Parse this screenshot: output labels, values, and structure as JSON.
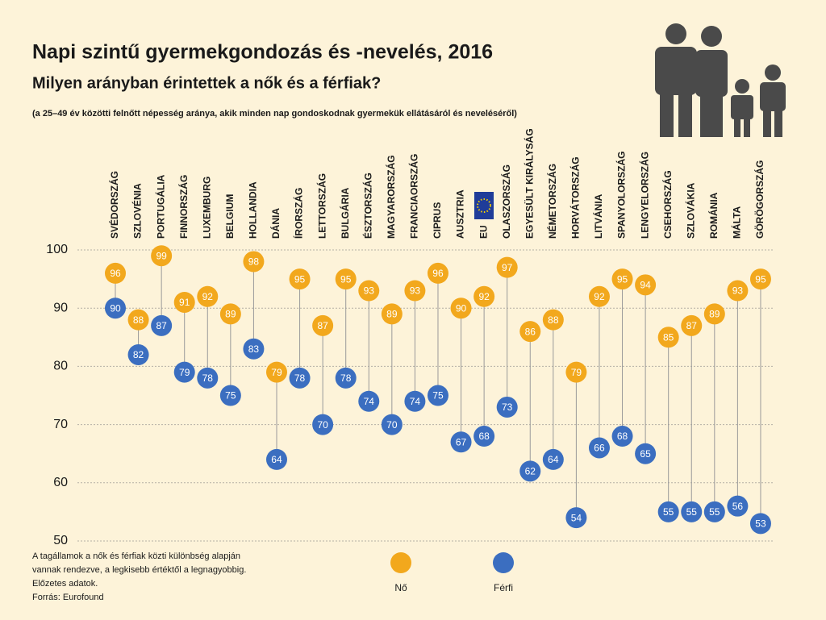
{
  "chart_data": {
    "type": "dumbbell",
    "title": "Napi szintű gyermekgondozás és -nevelés, 2016",
    "subtitle": "Milyen arányban érintettek a nők és a férfiak?",
    "description": "(a 25–49 év közötti felnőtt népesség aránya, akik minden nap gondoskodnak gyermekük ellátásáról és neveléséről)",
    "categories": [
      "SVÉDORSZÁG",
      "SZLOVÉNIA",
      "PORTUGÁLIA",
      "FINNORSZÁG",
      "LUXEMBURG",
      "BELGIUM",
      "HOLLANDIA",
      "DÁNIA",
      "ÍRORSZÁG",
      "LETTORSZÁG",
      "BULGÁRIA",
      "ÉSZTORSZÁG",
      "MAGYARORSZÁG",
      "FRANCIAORSZÁG",
      "CIPRUS",
      "AUSZTRIA",
      "EU",
      "OLASZORSZÁG",
      "EGYESÜLT KIRÁLYSÁG",
      "NÉMETORSZÁG",
      "HORVÁTORSZÁG",
      "LITVÁNIA",
      "SPANYOLORSZÁG",
      "LENGYELORSZÁG",
      "CSEHORSZÁG",
      "SZLOVÁKIA",
      "ROMÁNIA",
      "MÁLTA",
      "GÖRÖGORSZÁG"
    ],
    "series": [
      {
        "name": "Nő",
        "color": "#f2a81d",
        "values": [
          96,
          88,
          99,
          91,
          92,
          89,
          98,
          79,
          95,
          87,
          95,
          93,
          89,
          93,
          96,
          90,
          92,
          97,
          86,
          88,
          79,
          92,
          95,
          94,
          85,
          87,
          89,
          93,
          95
        ]
      },
      {
        "name": "Férfi",
        "color": "#3b6ec0",
        "values": [
          90,
          82,
          87,
          79,
          78,
          75,
          83,
          64,
          78,
          70,
          78,
          74,
          70,
          74,
          75,
          67,
          68,
          73,
          62,
          64,
          54,
          66,
          68,
          65,
          55,
          55,
          55,
          56,
          53
        ]
      }
    ],
    "ylim": [
      50,
      100
    ],
    "yticks": [
      50,
      60,
      70,
      80,
      90,
      100
    ],
    "grid": true,
    "notes": [
      "A tagállamok a nők és férfiak közti különbség alapján",
      "vannak rendezve, a legkisebb értéktől a legnagyobbig.",
      "Előzetes adatok.",
      "Forrás: Eurofound"
    ]
  }
}
